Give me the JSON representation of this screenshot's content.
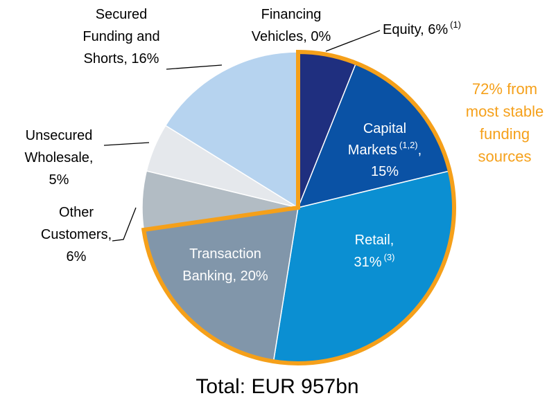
{
  "chart_data": {
    "type": "pie",
    "categories": [
      "Equity",
      "Capital Markets",
      "Retail",
      "Transaction Banking",
      "Other Customers",
      "Unsecured Wholesale",
      "Secured Funding and Shorts",
      "Financing Vehicles"
    ],
    "values": [
      6,
      15,
      31,
      20,
      6,
      5,
      16,
      0
    ],
    "colors": [
      "#1f2f7f",
      "#0a52a5",
      "#0b8fd2",
      "#8196aa",
      "#b2bcc4",
      "#e5e8ec",
      "#b6d3ef",
      "#9fb8d8"
    ],
    "labels": [
      [
        [
          "Equity, 6%",
          {
            "sup": "(1)"
          }
        ]
      ],
      [
        [
          "Capital"
        ],
        [
          "Markets",
          {
            "sup": "(1,2)"
          },
          ","
        ],
        [
          "15%"
        ]
      ],
      [
        [
          "Retail,"
        ],
        [
          "31%",
          {
            "sup": "(3)"
          }
        ]
      ],
      [
        [
          "Transaction"
        ],
        [
          "Banking, 20%"
        ]
      ],
      [
        [
          "Other"
        ],
        [
          "Customers,"
        ],
        [
          "6%"
        ]
      ],
      [
        [
          "Unsecured"
        ],
        [
          "Wholesale,"
        ],
        [
          "5%"
        ]
      ],
      [
        [
          "Secured"
        ],
        [
          "Funding and"
        ],
        [
          "Shorts, 16%"
        ]
      ],
      [
        [
          "Financing"
        ],
        [
          "Vehicles, 0%"
        ]
      ]
    ],
    "highlight": [
      0,
      1,
      2,
      3
    ],
    "highlight_color": "#f5a01a",
    "annotation": [
      "72% from",
      "most stable",
      "funding",
      "sources"
    ],
    "total": "Total: EUR 957bn"
  }
}
